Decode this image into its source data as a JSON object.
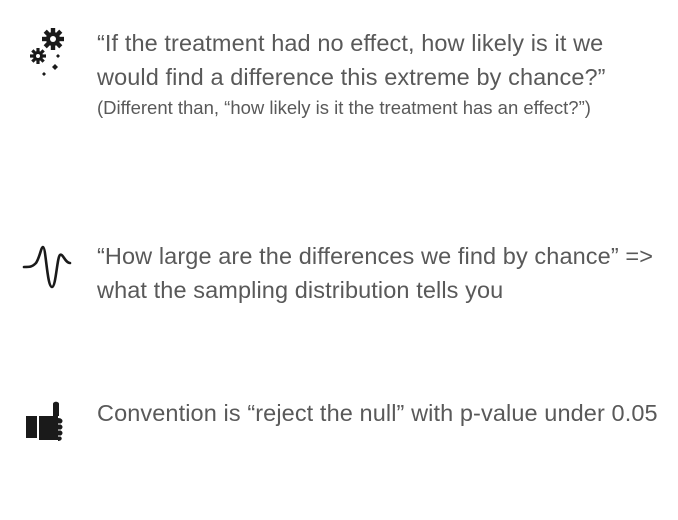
{
  "items": [
    {
      "icon": "gears-icon",
      "text": "“If the treatment had no effect, how likely is it we would find a difference this extreme by chance?”",
      "subtext": "(Different than, “how likely is it the treatment has an effect?”)"
    },
    {
      "icon": "wave-icon",
      "text": "“How large are the differences we find by chance”  =>  what the sampling distribution tells you"
    },
    {
      "icon": "thumbs-up-icon",
      "text": "Convention is “reject the null” with p-value under 0.05"
    }
  ]
}
